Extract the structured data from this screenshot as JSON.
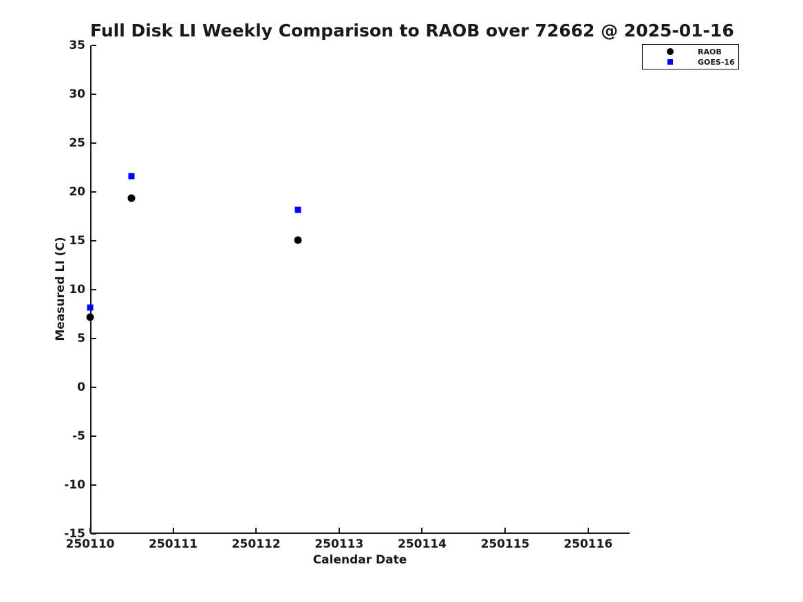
{
  "colors": {
    "background": "#ffffff",
    "text": "#1a1a1a",
    "axis": "#1a1a1a",
    "raob": "#000000",
    "goes16": "#0000ff"
  },
  "chart_data": {
    "type": "scatter",
    "title": "Full Disk LI Weekly Comparison to RAOB over 72662 @ 2025-01-16",
    "xlabel": "Calendar Date",
    "ylabel": "Measured LI (C)",
    "xlim": [
      250110,
      250116.5
    ],
    "ylim": [
      -15,
      35
    ],
    "xticks": [
      250110,
      250111,
      250112,
      250113,
      250114,
      250115,
      250116
    ],
    "yticks": [
      -15,
      -10,
      -5,
      0,
      5,
      10,
      15,
      20,
      25,
      30,
      35
    ],
    "grid": false,
    "legend_position": "outside-upper-right",
    "series": [
      {
        "name": "RAOB",
        "marker": "circle",
        "color": "#000000",
        "points": [
          [
            250110.0,
            7.2
          ],
          [
            250110.5,
            19.4
          ],
          [
            250112.5,
            15.1
          ]
        ]
      },
      {
        "name": "GOES-16",
        "marker": "square",
        "color": "#0000ff",
        "points": [
          [
            250110.0,
            8.2
          ],
          [
            250110.5,
            21.6
          ],
          [
            250112.5,
            18.2
          ]
        ]
      }
    ]
  }
}
